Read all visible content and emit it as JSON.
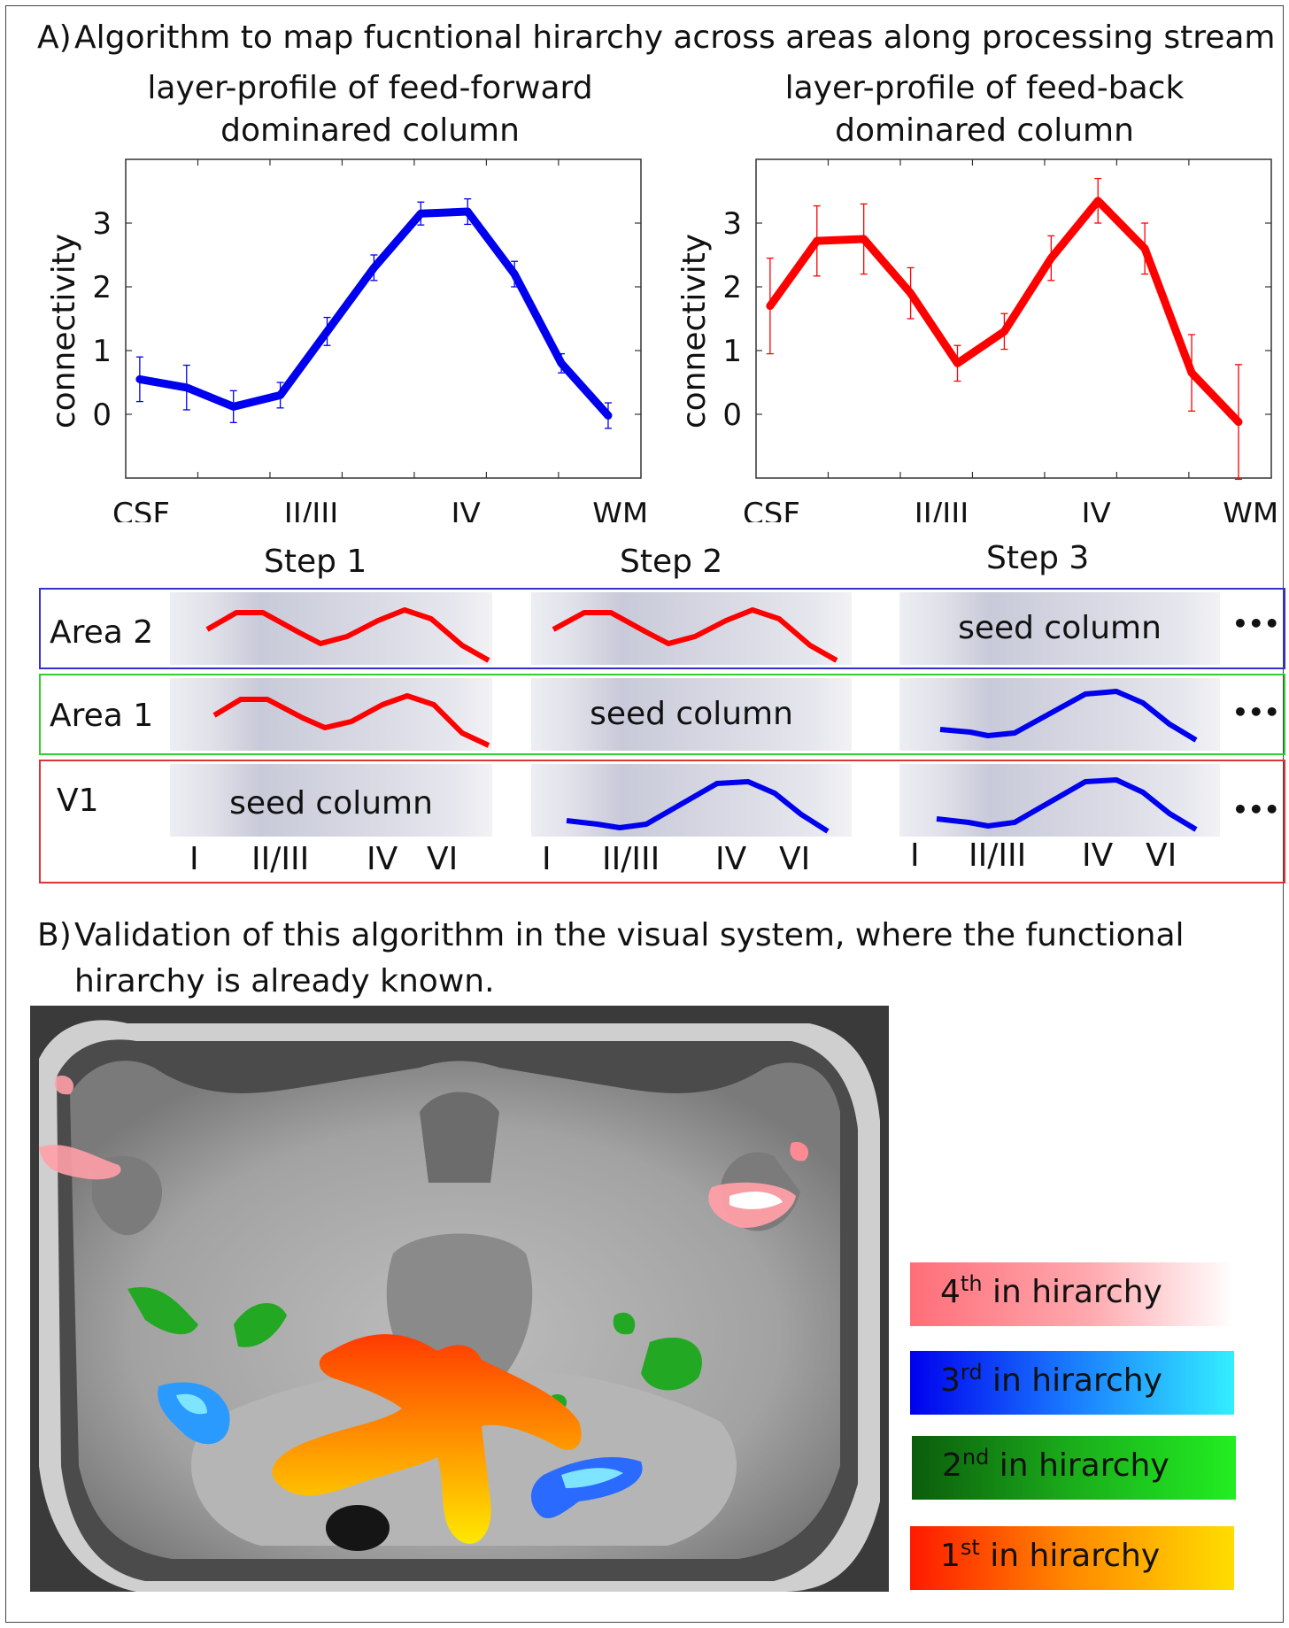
{
  "panel_a": {
    "label": "A)",
    "title": "Algorithm to map fucntional hirarchy across areas along processing stream",
    "left_title_1": "layer-profile of feed-forward",
    "left_title_2": "dominared column",
    "right_title_1": "layer-profile of feed-back",
    "right_title_2": "dominared column"
  },
  "chart_data": [
    {
      "type": "line",
      "ylabel": "connectivity",
      "xlabel": "",
      "x_tick_labels": [
        "CSF",
        "II/III",
        "IV",
        "WM"
      ],
      "y_ticks": [
        0,
        1,
        2,
        3
      ],
      "ylim": [
        -1.0,
        4.0
      ],
      "xlim": [
        0,
        11
      ],
      "color": "#0000ee",
      "x": [
        0.3,
        1.3,
        2.3,
        3.3,
        4.3,
        5.3,
        6.3,
        7.3,
        8.3,
        9.3,
        10.3
      ],
      "y": [
        0.55,
        0.42,
        0.12,
        0.3,
        1.3,
        2.3,
        3.15,
        3.18,
        2.2,
        0.8,
        -0.02
      ],
      "err": [
        0.35,
        0.35,
        0.25,
        0.2,
        0.22,
        0.2,
        0.18,
        0.2,
        0.2,
        0.15,
        0.2
      ]
    },
    {
      "type": "line",
      "ylabel": "connectivity",
      "xlabel": "",
      "x_tick_labels": [
        "CSF",
        "II/III",
        "IV",
        "WM"
      ],
      "y_ticks": [
        0,
        1,
        2,
        3
      ],
      "ylim": [
        -1.0,
        4.0
      ],
      "xlim": [
        0,
        11
      ],
      "color": "#ff0000",
      "x": [
        0.3,
        1.3,
        2.3,
        3.3,
        4.3,
        5.3,
        6.3,
        7.3,
        8.3,
        9.3,
        10.3
      ],
      "y": [
        1.7,
        2.72,
        2.75,
        1.9,
        0.8,
        1.3,
        2.45,
        3.35,
        2.6,
        0.65,
        -0.12
      ],
      "err": [
        0.75,
        0.55,
        0.55,
        0.4,
        0.28,
        0.28,
        0.35,
        0.35,
        0.4,
        0.6,
        0.9
      ]
    }
  ],
  "steps": {
    "labels": [
      "Step 1",
      "Step 2",
      "Step 3"
    ],
    "rows": [
      "Area 2",
      "Area 1",
      "V1"
    ],
    "seed": "seed column",
    "ellipsis": "•••",
    "layer_labels": [
      "I",
      "II/III",
      "IV",
      "VI"
    ],
    "row_colors": [
      "#3333cc",
      "#33cc33",
      "#dd3333"
    ]
  },
  "panel_b": {
    "label": "B)",
    "title_1": "Validation of this algorithm in the visual system, where the functional",
    "title_2": "hirarchy is already known.",
    "legend": [
      {
        "num": "4",
        "sup": "th",
        "text": " in hirarchy"
      },
      {
        "num": "3",
        "sup": "rd",
        "text": " in hirarchy"
      },
      {
        "num": "2",
        "sup": "nd",
        "text": " in hirarchy"
      },
      {
        "num": "1",
        "sup": "st",
        "text": " in hirarchy"
      }
    ]
  }
}
